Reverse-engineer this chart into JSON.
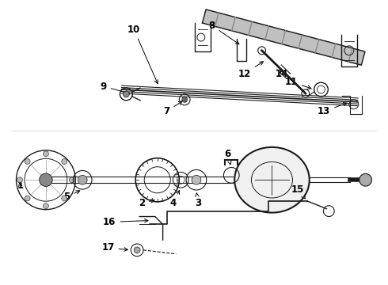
{
  "bg_color": "#ffffff",
  "lc": "#1a1a1a",
  "fig_w": 4.9,
  "fig_h": 3.6,
  "dpi": 100,
  "fontsize": 8.5
}
